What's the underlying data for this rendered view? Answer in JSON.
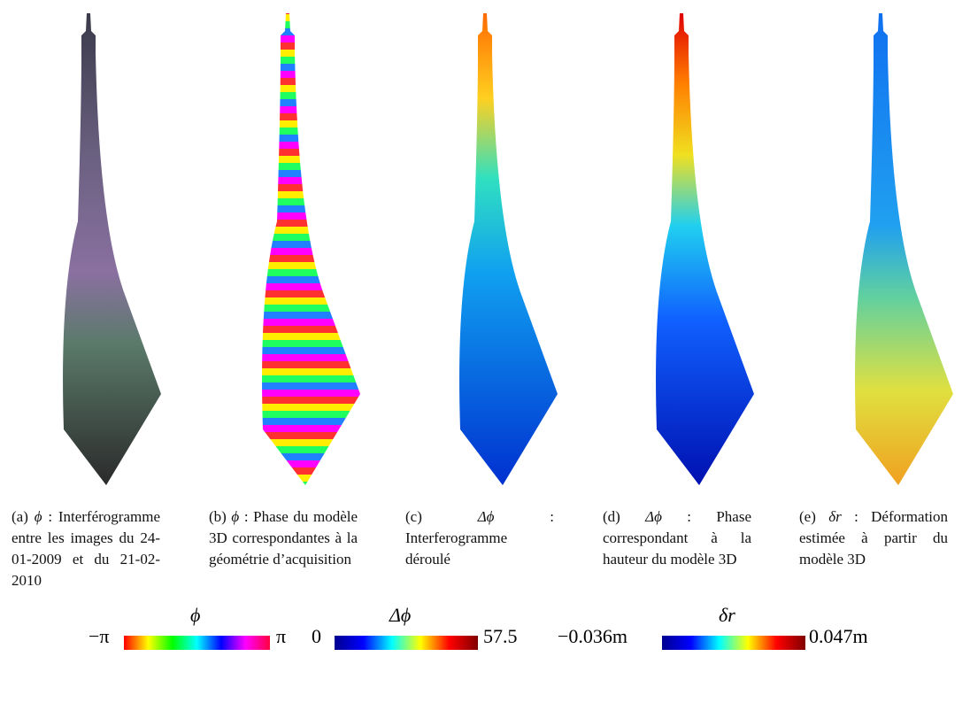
{
  "panels": [
    {
      "label": "(a)",
      "symbol": "ϕ",
      "text": ": Interférogramme entre les images du 24-01-2009 et du 21-02-2010"
    },
    {
      "label": "(b)",
      "symbol": "ϕ",
      "text": ": Phase du modèle 3D correspondantes à la géométrie d’acquisition"
    },
    {
      "label": "(c)",
      "symbol": "Δϕ",
      "text": ": Interferogramme déroulé"
    },
    {
      "label": "(d)",
      "symbol": "Δϕ",
      "text": ": Phase correspondant à la hauteur du modèle 3D"
    },
    {
      "label": "(e)",
      "symbol": "δr",
      "text": ": Déformation estimée à partir du modèle 3D"
    }
  ],
  "colorbars": [
    {
      "title": "ϕ",
      "min": "−π",
      "max": "π"
    },
    {
      "title": "Δϕ",
      "min": "0",
      "max": "57.5"
    },
    {
      "title": "δr",
      "min": "−0.036m",
      "max": "0.047m"
    }
  ]
}
